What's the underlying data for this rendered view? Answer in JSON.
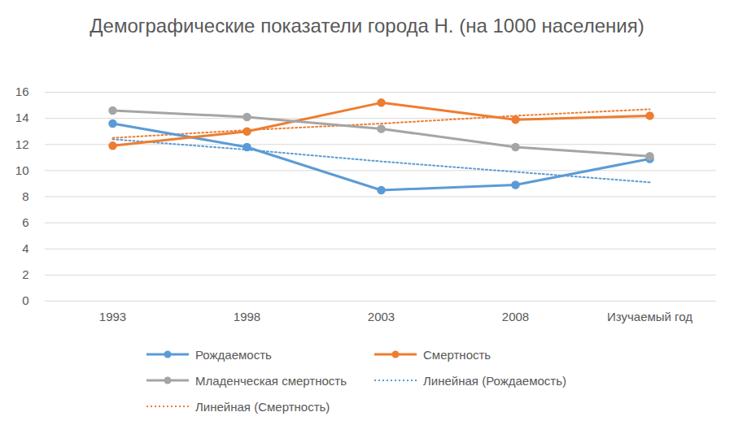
{
  "chart_data": {
    "type": "line",
    "title": "Демографические показатели города Н. (на 1000 населения)",
    "categories": [
      "1993",
      "1998",
      "2003",
      "2008",
      "Изучаемый год"
    ],
    "series": [
      {
        "name": "Рождаемость",
        "color": "#5b9bd5",
        "marker": "circle",
        "line_style": "solid",
        "values": [
          13.6,
          11.8,
          8.5,
          8.9,
          10.9
        ]
      },
      {
        "name": "Смертность",
        "color": "#ed7d31",
        "marker": "circle",
        "line_style": "solid",
        "values": [
          11.9,
          13.0,
          15.2,
          13.9,
          14.2
        ]
      },
      {
        "name": "Младенческая смертность",
        "color": "#a5a5a5",
        "marker": "circle",
        "line_style": "solid",
        "values": [
          14.6,
          14.1,
          13.2,
          11.8,
          11.1
        ]
      },
      {
        "name": "Линейная (Рождаемость)",
        "color": "#5b9bd5",
        "marker": "none",
        "line_style": "dotted",
        "values": [
          12.4,
          11.6,
          10.7,
          9.9,
          9.1
        ]
      },
      {
        "name": "Линейная (Смертность)",
        "color": "#ed7d31",
        "marker": "none",
        "line_style": "dotted",
        "values": [
          12.5,
          13.1,
          13.6,
          14.2,
          14.7
        ]
      }
    ],
    "ylim": [
      0,
      16
    ],
    "yticks": [
      0,
      2,
      4,
      6,
      8,
      10,
      12,
      14,
      16
    ],
    "grid": true,
    "legend": "bottom"
  }
}
